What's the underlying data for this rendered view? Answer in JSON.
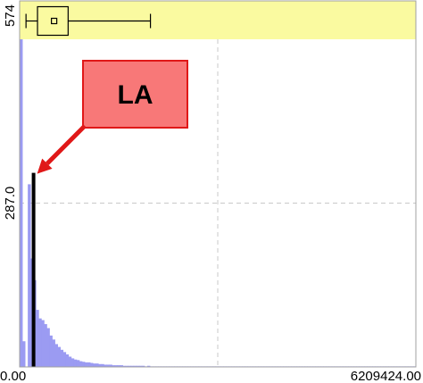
{
  "chart_data": {
    "type": "bar",
    "subtype": "histogram with boxplot strip",
    "title": "",
    "xlabel": "",
    "ylabel": "",
    "xlim": [
      0.0,
      6209424.0
    ],
    "ylim": [
      0,
      574
    ],
    "x_tick_labels": [
      "0.00",
      "6209424.00"
    ],
    "y_tick_labels": [
      "574",
      "287.0"
    ],
    "y_tick_values": [
      574,
      287
    ],
    "grid": "dashed horizontal and vertical at midpoints",
    "colors": {
      "bars": "#9b9bf2",
      "highlight_bar": "#000000",
      "boxplot_strip": "#fafaa0",
      "callout_fill": "#f87878",
      "callout_border": "#e01818",
      "arrow": "#e01818"
    },
    "bin_values": [
      574,
      45,
      340,
      320,
      190,
      152,
      100,
      85,
      82,
      75,
      68,
      55,
      48,
      40,
      35,
      30,
      26,
      22,
      18,
      15,
      13,
      12,
      10,
      9,
      8,
      8,
      7,
      6,
      6,
      5,
      5,
      4,
      4,
      4,
      3,
      3,
      3,
      3,
      2,
      2,
      2,
      2,
      2,
      2,
      2,
      2,
      1,
      2,
      1,
      1,
      1,
      1,
      1,
      1,
      1,
      1,
      1,
      1,
      1,
      1,
      1,
      1,
      1,
      1,
      1,
      1,
      1,
      1,
      1,
      1,
      1,
      1,
      1,
      1,
      1,
      1,
      1,
      1,
      1,
      1,
      1,
      1,
      1,
      1,
      1,
      1,
      1,
      1,
      1,
      1,
      1,
      1,
      1,
      1,
      1,
      1,
      1,
      1,
      1,
      1,
      1,
      1,
      1,
      1,
      1,
      1,
      1,
      1,
      1,
      1,
      1,
      1,
      1,
      1,
      1,
      1,
      1,
      1,
      1,
      1,
      1,
      1,
      1,
      1,
      1,
      1,
      1,
      1,
      1,
      1,
      1,
      1,
      1,
      1,
      1,
      1,
      1,
      1,
      1,
      1,
      1,
      1,
      1,
      1,
      1,
      1
    ],
    "highlight": {
      "bin_index": 2,
      "value": 340,
      "label": "LA"
    },
    "boxplot": {
      "whisker_low": 100000,
      "q1": 280000,
      "median": 540000,
      "q3": 760000,
      "whisker_high": 2050000
    }
  }
}
